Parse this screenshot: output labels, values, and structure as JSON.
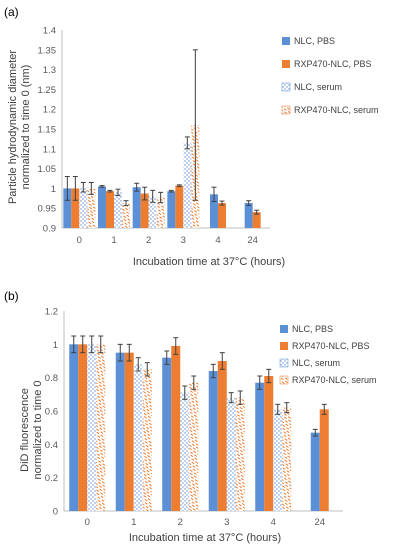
{
  "chart_data": [
    {
      "panel_label": "(a)",
      "type": "bar",
      "categories": [
        "0",
        "1",
        "2",
        "3",
        "4",
        "24"
      ],
      "xlabel": "Incubation time at 37°C (hours)",
      "ylabel_lines": [
        "Particle hydrodynamic diameter",
        "normalized to time 0 (nm)"
      ],
      "ylim": [
        0.9,
        1.4
      ],
      "yticks": [
        "0.9",
        "0.95",
        "1",
        "1.05",
        "1.1",
        "1.15",
        "1.2",
        "1.25",
        "1.3",
        "1.35",
        "1.4"
      ],
      "grid": false,
      "legend_position": "top-right",
      "series": [
        {
          "name": "NLC, PBS",
          "values": [
            1.0,
            1.005,
            1.003,
            0.993,
            0.985,
            0.963
          ],
          "errors": [
            0.03,
            0.002,
            0.01,
            0.002,
            0.018,
            0.006
          ],
          "color": "#5b8fd6",
          "pattern": "solid"
        },
        {
          "name": "RXP470-NLC, PBS",
          "values": [
            1.0,
            0.993,
            0.987,
            1.007,
            0.963,
            0.94
          ],
          "errors": [
            0.03,
            0.002,
            0.016,
            0.002,
            0.005,
            0.005
          ],
          "color": "#ed7d31",
          "pattern": "solid"
        },
        {
          "name": "NLC, serum",
          "values": [
            1.003,
            0.99,
            0.98,
            1.115,
            null,
            null
          ],
          "errors": [
            0.012,
            0.008,
            0.015,
            0.015,
            null,
            null
          ],
          "color": "#5b8fd6",
          "pattern": "dots"
        },
        {
          "name": "RXP470-NLC, serum",
          "values": [
            1.0,
            0.963,
            0.977,
            1.16,
            null,
            null
          ],
          "errors": [
            0.015,
            0.006,
            0.013,
            0.19,
            null,
            null
          ],
          "color": "#ed7d31",
          "pattern": "dash"
        }
      ]
    },
    {
      "panel_label": "(b)",
      "type": "bar",
      "categories": [
        "0",
        "1",
        "2",
        "3",
        "4",
        "24"
      ],
      "xlabel": "Incubation time at 37°C (hours)",
      "ylabel_lines": [
        "DiD fluorescence",
        "normalized to time 0"
      ],
      "ylim": [
        0,
        1.2
      ],
      "yticks": [
        "0",
        "0.2",
        "0.4",
        "0.6",
        "0.8",
        "1",
        "1.2"
      ],
      "grid": false,
      "legend_position": "top-right",
      "series": [
        {
          "name": "NLC, PBS",
          "values": [
            1.0,
            0.95,
            0.92,
            0.84,
            0.77,
            0.47
          ],
          "errors": [
            0.05,
            0.05,
            0.04,
            0.04,
            0.04,
            0.02
          ],
          "color": "#5b8fd6",
          "pattern": "solid"
        },
        {
          "name": "RXP470-NLC, PBS",
          "values": [
            1.0,
            0.95,
            0.99,
            0.9,
            0.81,
            0.61
          ],
          "errors": [
            0.05,
            0.05,
            0.05,
            0.05,
            0.04,
            0.03
          ],
          "color": "#ed7d31",
          "pattern": "solid"
        },
        {
          "name": "NLC, serum",
          "values": [
            1.0,
            0.88,
            0.71,
            0.68,
            0.61,
            null
          ],
          "errors": [
            0.05,
            0.04,
            0.04,
            0.03,
            0.03,
            null
          ],
          "color": "#5b8fd6",
          "pattern": "dots"
        },
        {
          "name": "RXP470-NLC, serum",
          "values": [
            1.0,
            0.85,
            0.77,
            0.68,
            0.62,
            null
          ],
          "errors": [
            0.05,
            0.04,
            0.04,
            0.04,
            0.03,
            null
          ],
          "color": "#ed7d31",
          "pattern": "dash"
        }
      ]
    }
  ]
}
